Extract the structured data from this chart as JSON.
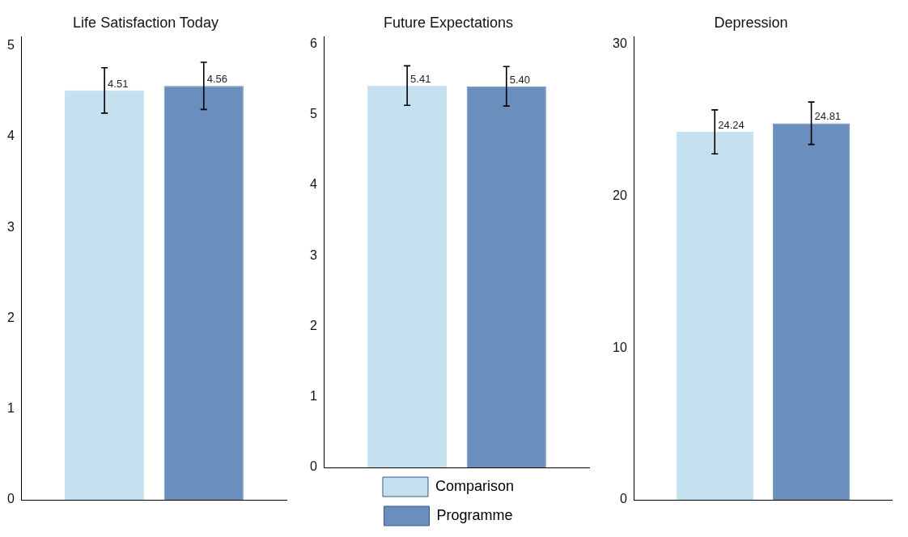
{
  "chart_data": [
    {
      "type": "bar",
      "title": "Life Satisfaction Today",
      "categories": [
        null
      ],
      "ylim": [
        0,
        5.1
      ],
      "yticks": [
        0,
        1,
        2,
        3,
        4,
        5
      ],
      "grid": false,
      "tick_labels": "y",
      "series": [
        {
          "color": "#c5e0ee",
          "values": [
            4.51
          ],
          "errors": [
            0.25
          ],
          "value_labels": [
            "4.51"
          ]
        },
        {
          "color": "#6a8fbd",
          "values": [
            4.56
          ],
          "errors": [
            0.26
          ],
          "value_labels": [
            "4.56"
          ]
        }
      ]
    },
    {
      "type": "bar",
      "title": "Future Expectations",
      "categories": [
        null
      ],
      "ylim": [
        0,
        6.1
      ],
      "yticks": [
        0,
        1,
        2,
        3,
        4,
        5,
        6
      ],
      "grid": false,
      "tick_labels": "y",
      "legend": "bottom",
      "series": [
        {
          "name": "Comparison",
          "color": "#c5e0ee",
          "values": [
            5.41
          ],
          "errors": [
            0.28
          ],
          "value_labels": [
            "5.41"
          ]
        },
        {
          "name": "Programme",
          "color": "#6a8fbd",
          "values": [
            5.4
          ],
          "errors": [
            0.28
          ],
          "value_labels": [
            "5.40"
          ]
        }
      ]
    },
    {
      "type": "bar",
      "title": "Depression",
      "categories": [
        null
      ],
      "ylim": [
        0,
        30.5
      ],
      "yticks": [
        0,
        10,
        20,
        30
      ],
      "grid": false,
      "tick_labels": "y",
      "series": [
        {
          "color": "#c5e0ee",
          "values": [
            24.24
          ],
          "errors": [
            1.45
          ],
          "value_labels": [
            "24.24"
          ]
        },
        {
          "color": "#6a8fbd",
          "values": [
            24.81
          ],
          "errors": [
            1.4
          ],
          "value_labels": [
            "24.81"
          ]
        }
      ]
    }
  ]
}
